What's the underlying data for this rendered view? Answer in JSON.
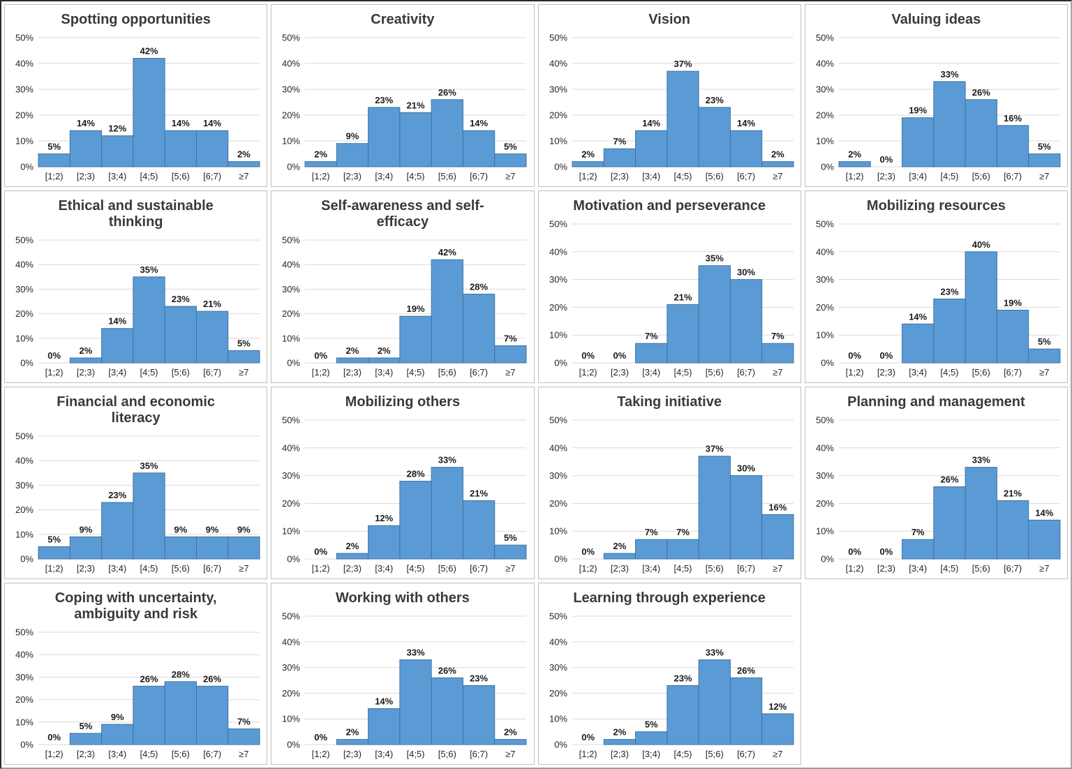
{
  "figure": {
    "y_ticks": [
      "0%",
      "10%",
      "20%",
      "30%",
      "40%",
      "50%"
    ],
    "ylim": [
      0,
      50
    ],
    "data_label_suffix": "%",
    "grid": true,
    "legend": "none",
    "colors": {
      "bar_fill": "#5b9bd5",
      "bar_stroke": "#41719c",
      "gridline": "#d9d9d9",
      "tick_text": "#262626",
      "data_label_text": "#1a1a1a",
      "title_text": "#3a3a3a",
      "cell_border": "#bfbfbf"
    }
  },
  "chart_data": [
    {
      "type": "bar",
      "title": "Spotting opportunities",
      "categories": [
        "[1;2)",
        "[2;3)",
        "[3;4)",
        "[4;5)",
        "[5;6)",
        "[6;7)",
        "≥7"
      ],
      "values": [
        5,
        14,
        12,
        42,
        14,
        14,
        2
      ],
      "ylim": [
        0,
        50
      ],
      "ylabel": ""
    },
    {
      "type": "bar",
      "title": "Creativity",
      "categories": [
        "[1;2)",
        "[2;3)",
        "[3;4)",
        "[4;5)",
        "[5;6)",
        "[6;7)",
        "≥7"
      ],
      "values": [
        2,
        9,
        23,
        21,
        26,
        14,
        5
      ],
      "ylim": [
        0,
        50
      ],
      "ylabel": ""
    },
    {
      "type": "bar",
      "title": "Vision",
      "categories": [
        "[1;2)",
        "[2;3)",
        "[3;4)",
        "[4;5)",
        "[5;6)",
        "[6;7)",
        "≥7"
      ],
      "values": [
        2,
        7,
        14,
        37,
        23,
        14,
        2
      ],
      "ylim": [
        0,
        50
      ],
      "ylabel": ""
    },
    {
      "type": "bar",
      "title": "Valuing ideas",
      "categories": [
        "[1;2)",
        "[2;3)",
        "[3;4)",
        "[4;5)",
        "[5;6)",
        "[6;7)",
        "≥7"
      ],
      "values": [
        2,
        0,
        19,
        33,
        26,
        16,
        5
      ],
      "ylim": [
        0,
        50
      ],
      "ylabel": ""
    },
    {
      "type": "bar",
      "title": "Ethical and sustainable\nthinking",
      "categories": [
        "[1;2)",
        "[2;3)",
        "[3;4)",
        "[4;5)",
        "[5;6)",
        "[6;7)",
        "≥7"
      ],
      "values": [
        0,
        2,
        14,
        35,
        23,
        21,
        5
      ],
      "ylim": [
        0,
        50
      ],
      "ylabel": ""
    },
    {
      "type": "bar",
      "title": "Self-awareness and self-\nefficacy",
      "categories": [
        "[1;2)",
        "[2;3)",
        "[3;4)",
        "[4;5)",
        "[5;6)",
        "[6;7)",
        "≥7"
      ],
      "values": [
        0,
        2,
        2,
        19,
        42,
        28,
        7
      ],
      "ylim": [
        0,
        50
      ],
      "ylabel": ""
    },
    {
      "type": "bar",
      "title": "Motivation and perseverance",
      "categories": [
        "[1;2)",
        "[2;3)",
        "[3;4)",
        "[4;5)",
        "[5;6)",
        "[6;7)",
        "≥7"
      ],
      "values": [
        0,
        0,
        7,
        21,
        35,
        30,
        7
      ],
      "ylim": [
        0,
        50
      ],
      "ylabel": ""
    },
    {
      "type": "bar",
      "title": "Mobilizing resources",
      "categories": [
        "[1;2)",
        "[2;3)",
        "[3;4)",
        "[4;5)",
        "[5;6)",
        "[6;7)",
        "≥7"
      ],
      "values": [
        0,
        0,
        14,
        23,
        40,
        19,
        5
      ],
      "ylim": [
        0,
        50
      ],
      "ylabel": ""
    },
    {
      "type": "bar",
      "title": "Financial and economic\nliteracy",
      "categories": [
        "[1;2)",
        "[2;3)",
        "[3;4)",
        "[4;5)",
        "[5;6)",
        "[6;7)",
        "≥7"
      ],
      "values": [
        5,
        9,
        23,
        35,
        9,
        9,
        9
      ],
      "ylim": [
        0,
        50
      ],
      "ylabel": ""
    },
    {
      "type": "bar",
      "title": "Mobilizing others",
      "categories": [
        "[1;2)",
        "[2;3)",
        "[3;4)",
        "[4;5)",
        "[5;6)",
        "[6;7)",
        "≥7"
      ],
      "values": [
        0,
        2,
        12,
        28,
        33,
        21,
        5
      ],
      "ylim": [
        0,
        50
      ],
      "ylabel": ""
    },
    {
      "type": "bar",
      "title": "Taking initiative",
      "categories": [
        "[1;2)",
        "[2;3)",
        "[3;4)",
        "[4;5)",
        "[5;6)",
        "[6;7)",
        "≥7"
      ],
      "values": [
        0,
        2,
        7,
        7,
        37,
        30,
        16
      ],
      "ylim": [
        0,
        50
      ],
      "ylabel": ""
    },
    {
      "type": "bar",
      "title": "Planning and management",
      "categories": [
        "[1;2)",
        "[2;3)",
        "[3;4)",
        "[4;5)",
        "[5;6)",
        "[6;7)",
        "≥7"
      ],
      "values": [
        0,
        0,
        7,
        26,
        33,
        21,
        14
      ],
      "ylim": [
        0,
        50
      ],
      "ylabel": ""
    },
    {
      "type": "bar",
      "title": "Coping with uncertainty,\nambiguity and risk",
      "categories": [
        "[1;2)",
        "[2;3)",
        "[3;4)",
        "[4;5)",
        "[5;6)",
        "[6;7)",
        "≥7"
      ],
      "values": [
        0,
        5,
        9,
        26,
        28,
        26,
        7
      ],
      "ylim": [
        0,
        50
      ],
      "ylabel": ""
    },
    {
      "type": "bar",
      "title": "Working with others",
      "categories": [
        "[1;2)",
        "[2;3)",
        "[3;4)",
        "[4;5)",
        "[5;6)",
        "[6;7)",
        "≥7"
      ],
      "values": [
        0,
        2,
        14,
        33,
        26,
        23,
        2
      ],
      "ylim": [
        0,
        50
      ],
      "ylabel": ""
    },
    {
      "type": "bar",
      "title": "Learning through experience",
      "categories": [
        "[1;2)",
        "[2;3)",
        "[3;4)",
        "[4;5)",
        "[5;6)",
        "[6;7)",
        "≥7"
      ],
      "values": [
        0,
        2,
        5,
        23,
        33,
        26,
        12
      ],
      "ylim": [
        0,
        50
      ],
      "ylabel": ""
    }
  ]
}
